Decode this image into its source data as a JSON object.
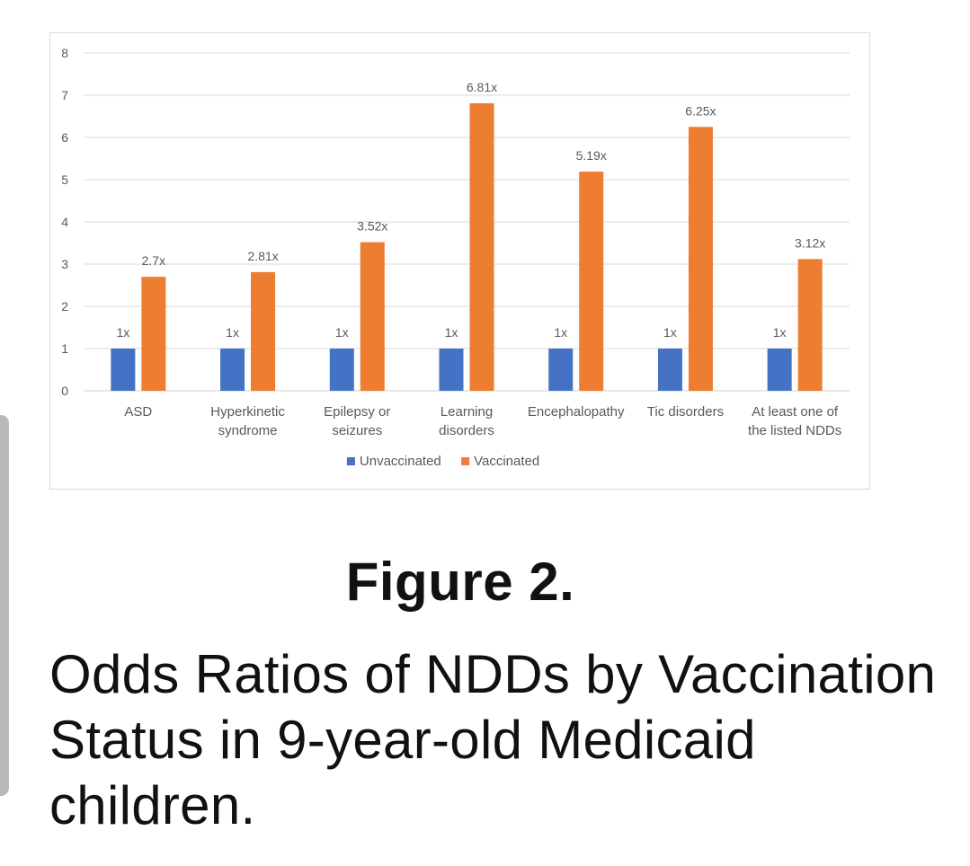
{
  "figure": {
    "label": "Figure 2.",
    "caption": "Odds Ratios of NDDs by Vaccination Status in 9-year-old Medicaid children."
  },
  "chart_data": {
    "type": "bar",
    "title": "",
    "xlabel": "",
    "ylabel": "",
    "ylim": [
      0,
      8
    ],
    "yticks": [
      0,
      1,
      2,
      3,
      4,
      5,
      6,
      7,
      8
    ],
    "grid": true,
    "legend_position": "bottom",
    "categories": [
      [
        "ASD"
      ],
      [
        "Hyperkinetic",
        "syndrome"
      ],
      [
        "Epilepsy or",
        "seizures"
      ],
      [
        "Learning",
        "disorders"
      ],
      [
        "Encephalopathy"
      ],
      [
        "Tic disorders"
      ],
      [
        "At least one of",
        "the listed NDDs"
      ]
    ],
    "series": [
      {
        "name": "Unvaccinated",
        "color": "#4472c4",
        "values": [
          1,
          1,
          1,
          1,
          1,
          1,
          1
        ],
        "labels": [
          "1x",
          "1x",
          "1x",
          "1x",
          "1x",
          "1x",
          "1x"
        ]
      },
      {
        "name": "Vaccinated",
        "color": "#ed7d31",
        "values": [
          2.7,
          2.81,
          3.52,
          6.81,
          5.19,
          6.25,
          3.12
        ],
        "labels": [
          "2.7x",
          "2.81x",
          "3.52x",
          "6.81x",
          "5.19x",
          "6.25x",
          "3.12x"
        ]
      }
    ]
  }
}
